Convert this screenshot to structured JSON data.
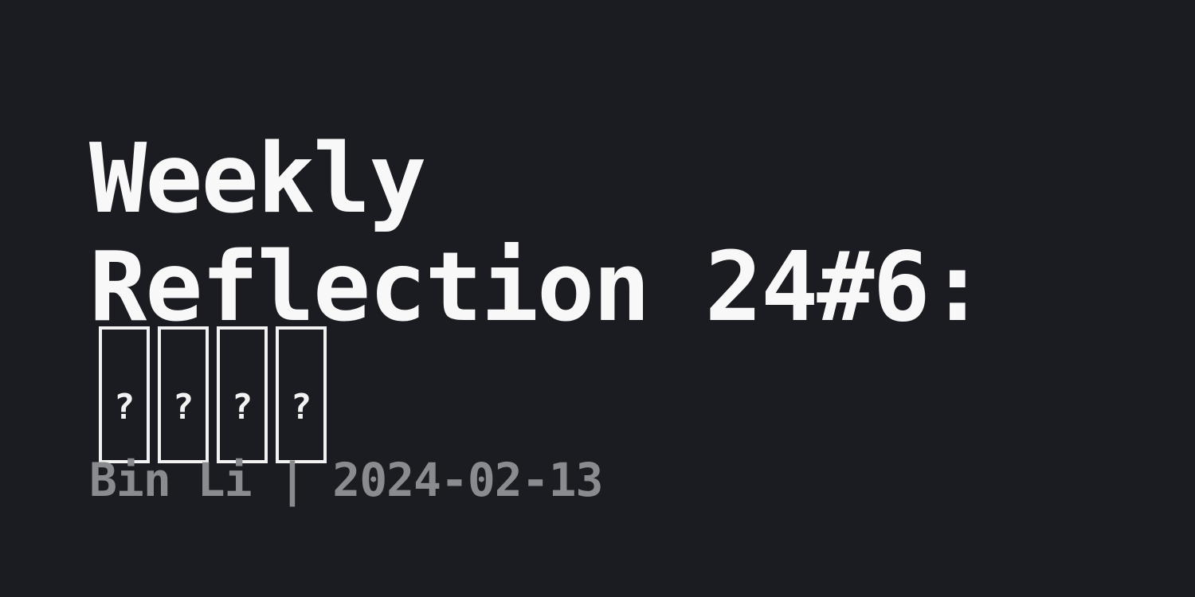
{
  "post": {
    "title": "Weekly\nReflection 24#6:",
    "title_glyphs": [
      "?",
      "?",
      "?",
      "?"
    ],
    "author": "Bin Li",
    "separator": "|",
    "date": "2024-02-13"
  },
  "colors": {
    "background": "#1b1c21",
    "title": "#f8f8f8",
    "byline": "#8a8b8e"
  }
}
